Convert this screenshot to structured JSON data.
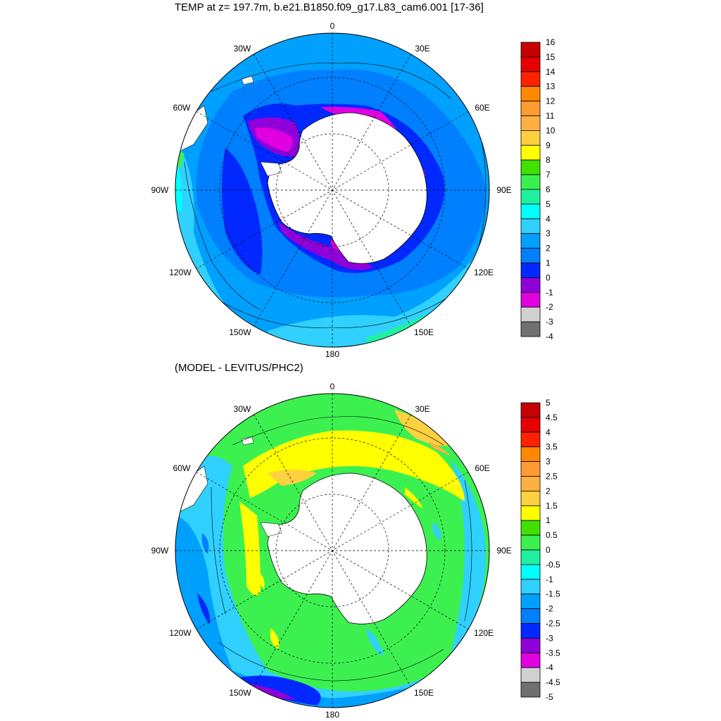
{
  "panels": [
    {
      "id": "top",
      "title": "TEMP at z= 197.7m, b.e21.B1850.f09_g17.L83_cam6.001 [17-36]",
      "lon_labels": {
        "n": "0",
        "ne": "30E",
        "e1": "60E",
        "e": "90E",
        "se1": "120E",
        "se": "150E",
        "s": "180",
        "sw": "150W",
        "w1": "120W",
        "w": "90W",
        "nw1": "60W",
        "nw": "30W"
      },
      "colorbar": {
        "labels": [
          "16",
          "15",
          "14",
          "13",
          "12",
          "11",
          "10",
          "9",
          "8",
          "7",
          "6",
          "5",
          "4",
          "3",
          "2",
          "1",
          "0",
          "-1",
          "-2",
          "-3",
          "-4"
        ],
        "colors": [
          "#c40000",
          "#e80000",
          "#ff2200",
          "#ff8800",
          "#ff9b30",
          "#ffb040",
          "#ffd040",
          "#ffff00",
          "#40e000",
          "#3cf050",
          "#20f0a0",
          "#00ffff",
          "#30d0ff",
          "#00a0ff",
          "#0080ff",
          "#0028ff",
          "#9000d8",
          "#e000e0",
          "#d0d0d0",
          "#707070"
        ]
      }
    },
    {
      "id": "bottom",
      "title": "(MODEL - LEVITUS/PHC2)",
      "lon_labels": {
        "n": "0",
        "ne": "30E",
        "e1": "60E",
        "e": "90E",
        "se1": "120E",
        "se": "150E",
        "s": "180",
        "sw": "150W",
        "w1": "120W",
        "w": "90W",
        "nw1": "60W",
        "nw": "30W"
      },
      "colorbar": {
        "labels": [
          "5",
          "4.5",
          "4",
          "3.5",
          "3",
          "2.5",
          "2",
          "1.5",
          "1",
          "0.5",
          "0",
          "-0.5",
          "-1",
          "-1.5",
          "-2",
          "-2.5",
          "-3",
          "-3.5",
          "-4",
          "-4.5",
          "-5"
        ],
        "colors": [
          "#c40000",
          "#e80000",
          "#ff2200",
          "#ff8800",
          "#ff9b30",
          "#ffb040",
          "#ffd040",
          "#ffff00",
          "#40e000",
          "#3cf050",
          "#20f0a0",
          "#00ffff",
          "#30d0ff",
          "#00a0ff",
          "#0080ff",
          "#0028ff",
          "#9000d8",
          "#e000e0",
          "#d0d0d0",
          "#707070"
        ]
      }
    }
  ]
}
